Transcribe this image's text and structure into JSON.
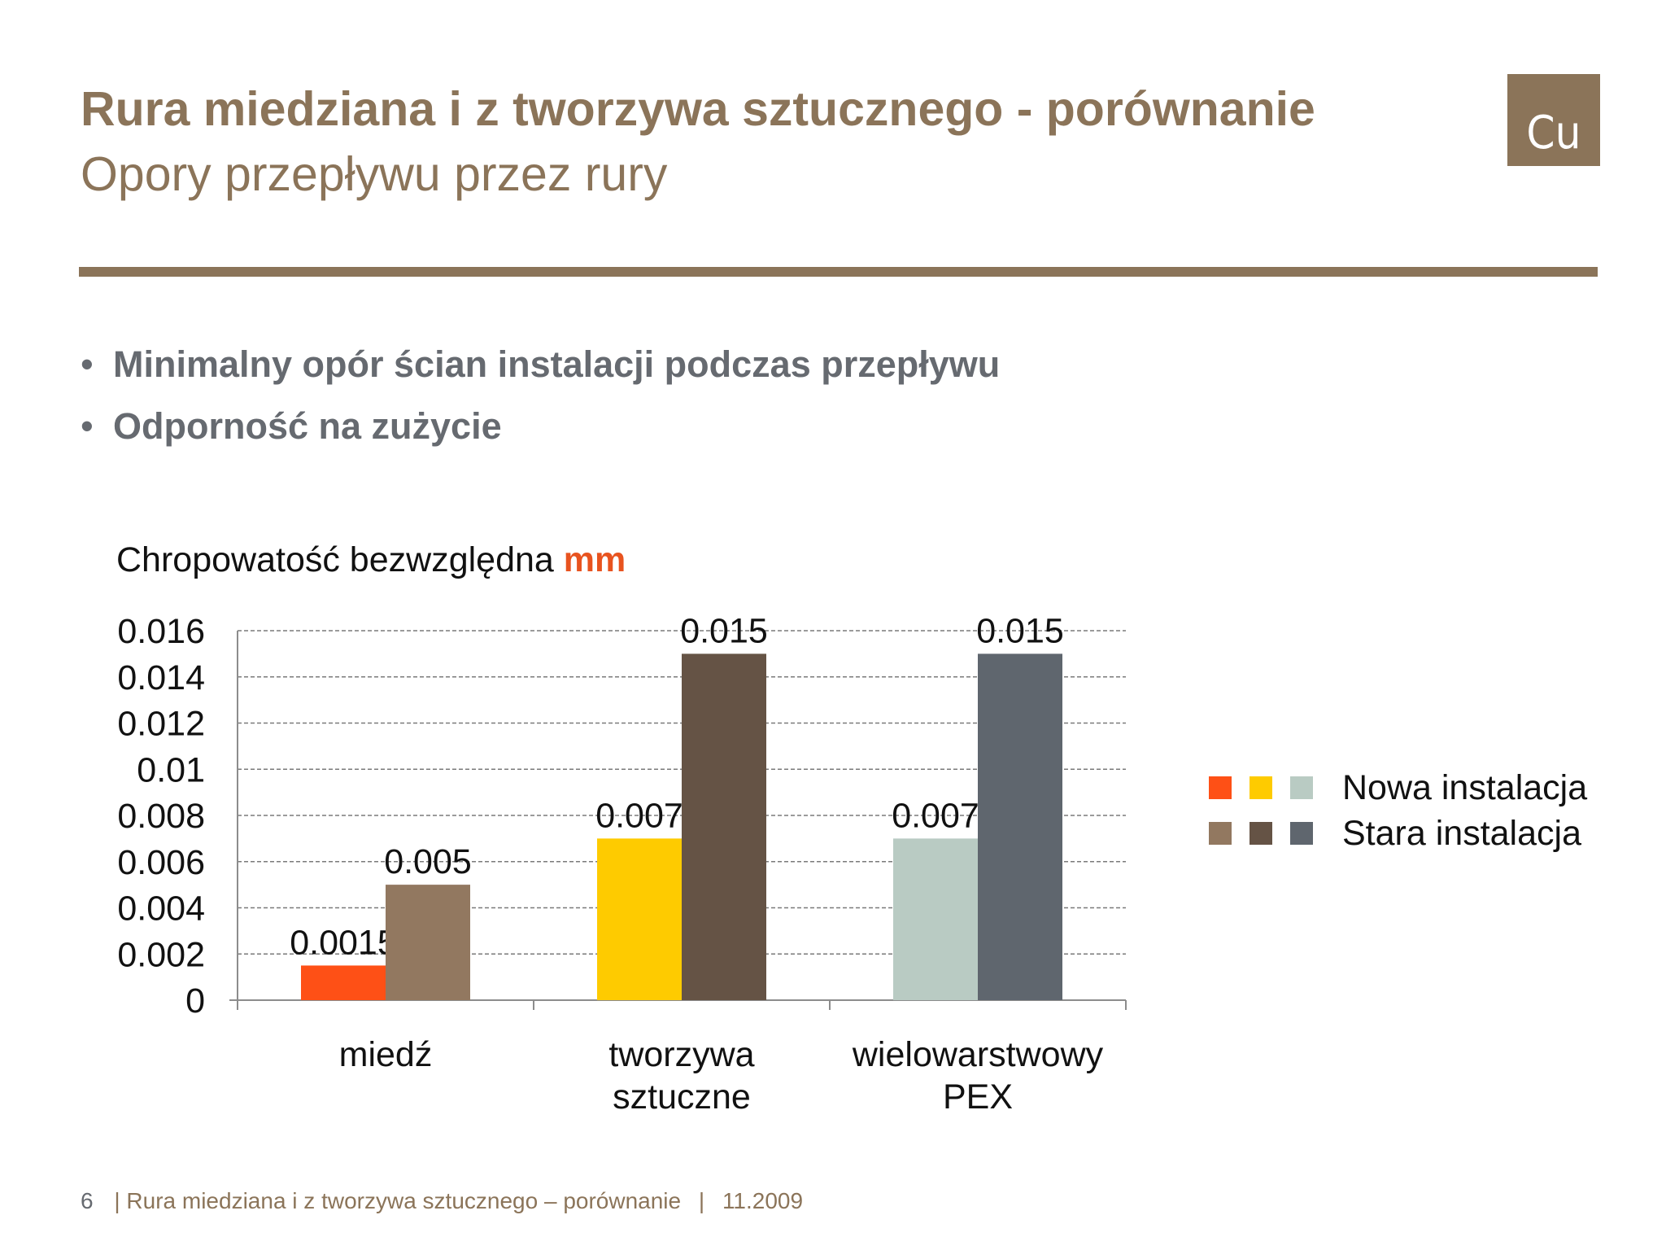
{
  "slide": {
    "title": "Rura miedziana i z tworzywa sztucznego - porównanie",
    "subtitle": "Opory przepływu przez rury",
    "logo": "Cu",
    "bullets": [
      "Minimalny opór ścian instalacji podczas przepływu",
      "Odporność na zużycie"
    ],
    "bullet_glyph": "•"
  },
  "footer": {
    "page_number": "6",
    "separator": "|",
    "text": "Rura miedziana i z tworzywa sztucznego – porównanie",
    "date": "11.2009"
  },
  "colors": {
    "brand": "#8b7459",
    "text_gray": "#666a70",
    "accent_orange": "#e8531f"
  },
  "chart_data": {
    "type": "bar",
    "title": "",
    "ylabel": "Chropowatość bezwzględna",
    "ylabel_unit": "mm",
    "categories": [
      "miedź",
      "tworzywa sztuczne",
      "wielowarstwowy PEX"
    ],
    "category_lines": [
      [
        "miedź"
      ],
      [
        "tworzywa",
        "sztuczne"
      ],
      [
        "wielowarstwowy",
        "PEX"
      ]
    ],
    "series": [
      {
        "name": "Nowa instalacja",
        "values": [
          0.0015,
          0.007,
          0.007
        ],
        "labels": [
          "0.0015",
          "0.007",
          "0.007"
        ],
        "colors": [
          "#fe5016",
          "#fecb00",
          "#b9cbc3"
        ]
      },
      {
        "name": "Stara instalacja",
        "values": [
          0.005,
          0.015,
          0.015
        ],
        "labels": [
          "0.005",
          "0.015",
          "0.015"
        ],
        "colors": [
          "#927860",
          "#655345",
          "#5f666e"
        ]
      }
    ],
    "ylim": [
      0,
      0.016
    ],
    "yticks": [
      "0",
      "0.002",
      "0.004",
      "0.006",
      "0.008",
      "0.01",
      "0.012",
      "0.014",
      "0.016"
    ],
    "grid": true,
    "grid_style": "dashed",
    "legend": "right"
  }
}
